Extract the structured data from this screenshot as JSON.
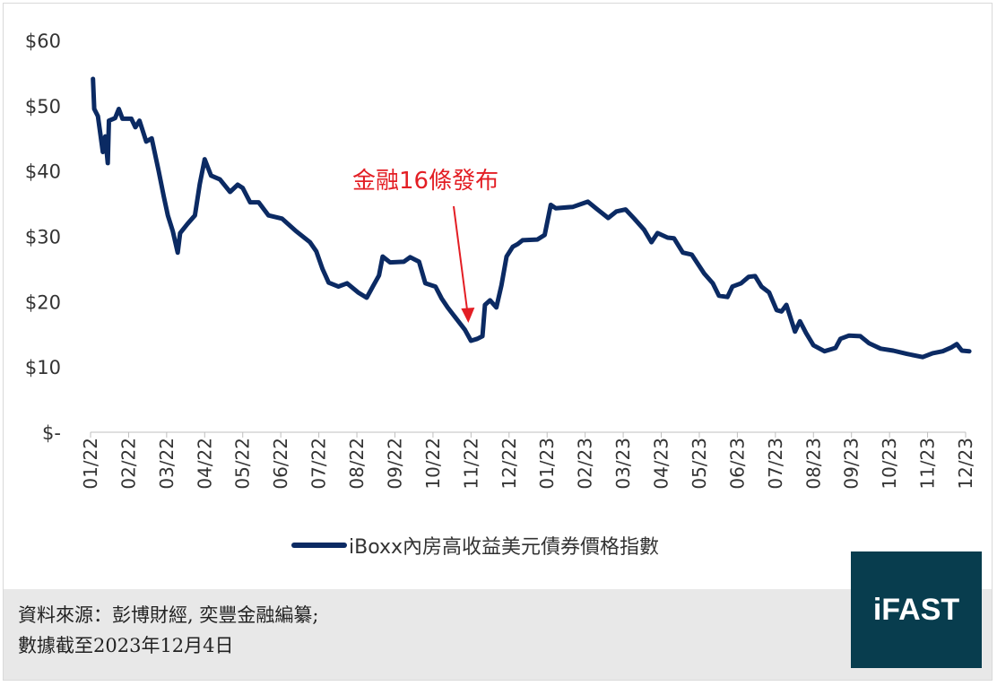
{
  "chart_data": {
    "type": "line",
    "title": "",
    "xlabel": "",
    "ylabel": "",
    "ylim": [
      0,
      60
    ],
    "y_ticks": [
      "$-",
      "$10",
      "$20",
      "$30",
      "$40",
      "$50",
      "$60"
    ],
    "y_tick_values": [
      0,
      10,
      20,
      30,
      40,
      50,
      60
    ],
    "x_ticks": [
      "01/22",
      "02/22",
      "03/22",
      "04/22",
      "05/22",
      "06/22",
      "07/22",
      "08/22",
      "09/22",
      "10/22",
      "11/22",
      "12/22",
      "01/23",
      "02/23",
      "03/23",
      "04/23",
      "05/23",
      "06/23",
      "07/23",
      "08/23",
      "09/23",
      "10/23",
      "11/23",
      "12/23"
    ],
    "x_tick_dates": [
      "2022-01-01",
      "2022-02-01",
      "2022-03-01",
      "2022-04-01",
      "2022-05-01",
      "2022-06-01",
      "2022-07-01",
      "2022-08-01",
      "2022-09-01",
      "2022-10-01",
      "2022-11-01",
      "2022-12-01",
      "2023-01-01",
      "2023-02-01",
      "2023-03-01",
      "2023-04-01",
      "2023-05-01",
      "2023-06-01",
      "2023-07-01",
      "2023-08-01",
      "2023-09-01",
      "2023-10-01",
      "2023-11-01",
      "2023-12-01"
    ],
    "grid": false,
    "legend_position": "bottom",
    "colors": {
      "series": "#0b2a63",
      "annotation": "#e31e24"
    },
    "series": [
      {
        "name": "iBoxx內房高收益美元債券價格指數",
        "x": [
          "2022-01-03",
          "2022-01-04",
          "2022-01-07",
          "2022-01-11",
          "2022-01-13",
          "2022-01-15",
          "2022-01-16",
          "2022-01-21",
          "2022-01-24",
          "2022-01-27",
          "2022-02-03",
          "2022-02-06",
          "2022-02-09",
          "2022-02-14",
          "2022-02-18",
          "2022-02-23",
          "2022-02-27",
          "2022-03-02",
          "2022-03-06",
          "2022-03-10",
          "2022-03-12",
          "2022-03-18",
          "2022-03-24",
          "2022-03-28",
          "2022-04-01",
          "2022-04-06",
          "2022-04-13",
          "2022-04-21",
          "2022-04-27",
          "2022-05-01",
          "2022-05-07",
          "2022-05-14",
          "2022-05-22",
          "2022-06-02",
          "2022-06-13",
          "2022-06-24",
          "2022-06-29",
          "2022-07-04",
          "2022-07-09",
          "2022-07-17",
          "2022-07-24",
          "2022-08-02",
          "2022-08-09",
          "2022-08-14",
          "2022-08-19",
          "2022-08-22",
          "2022-08-28",
          "2022-09-08",
          "2022-09-13",
          "2022-09-20",
          "2022-09-25",
          "2022-10-03",
          "2022-10-08",
          "2022-10-13",
          "2022-10-20",
          "2022-10-27",
          "2022-11-01",
          "2022-11-06",
          "2022-11-10",
          "2022-11-12",
          "2022-11-16",
          "2022-11-21",
          "2022-11-25",
          "2022-11-29",
          "2022-12-04",
          "2022-12-08",
          "2022-12-12",
          "2022-12-24",
          "2022-12-30",
          "2023-01-04",
          "2023-01-08",
          "2023-01-22",
          "2023-02-03",
          "2023-02-10",
          "2023-02-18",
          "2023-02-24",
          "2023-03-03",
          "2023-03-10",
          "2023-03-18",
          "2023-03-24",
          "2023-03-29",
          "2023-04-06",
          "2023-04-11",
          "2023-04-18",
          "2023-04-25",
          "2023-05-05",
          "2023-05-12",
          "2023-05-17",
          "2023-05-24",
          "2023-05-28",
          "2023-06-04",
          "2023-06-10",
          "2023-06-15",
          "2023-06-20",
          "2023-06-26",
          "2023-07-02",
          "2023-07-06",
          "2023-07-10",
          "2023-07-17",
          "2023-07-21",
          "2023-07-26",
          "2023-08-01",
          "2023-08-10",
          "2023-08-19",
          "2023-08-23",
          "2023-08-30",
          "2023-09-08",
          "2023-09-15",
          "2023-09-24",
          "2023-10-04",
          "2023-10-15",
          "2023-10-28",
          "2023-11-05",
          "2023-11-13",
          "2023-11-20",
          "2023-11-24",
          "2023-11-28",
          "2023-12-04"
        ],
        "values": [
          54.1,
          49.5,
          48.4,
          42.9,
          45.3,
          41.2,
          47.7,
          48.1,
          49.5,
          48.0,
          48.0,
          46.7,
          47.7,
          44.5,
          45.0,
          40.1,
          36.0,
          33.2,
          30.8,
          27.5,
          30.5,
          31.9,
          33.2,
          38.0,
          41.8,
          39.3,
          38.7,
          36.8,
          37.9,
          37.4,
          35.2,
          35.2,
          33.2,
          32.7,
          30.8,
          29.1,
          27.7,
          25.0,
          22.9,
          22.3,
          22.8,
          21.4,
          20.6,
          22.3,
          24.0,
          26.9,
          26.0,
          26.1,
          26.8,
          26.1,
          22.8,
          22.3,
          20.5,
          19.1,
          17.4,
          15.7,
          14.0,
          14.3,
          14.7,
          19.5,
          20.2,
          19.1,
          22.5,
          26.9,
          28.4,
          28.8,
          29.4,
          29.5,
          30.2,
          34.8,
          34.3,
          34.5,
          35.3,
          34.1,
          32.8,
          33.8,
          34.1,
          32.7,
          31.0,
          29.1,
          30.5,
          29.8,
          29.7,
          27.5,
          27.2,
          24.3,
          22.8,
          20.9,
          20.7,
          22.3,
          22.8,
          23.8,
          23.9,
          22.3,
          21.4,
          18.7,
          18.5,
          19.5,
          15.4,
          17.0,
          15.2,
          13.3,
          12.4,
          12.9,
          14.3,
          14.8,
          14.7,
          13.6,
          12.8,
          12.5,
          12.0,
          11.5,
          12.1,
          12.4,
          13.0,
          13.5,
          12.5,
          12.4
        ]
      }
    ],
    "annotations": [
      {
        "text": "金融16條發布",
        "date": "2022-11-01",
        "value": 14.0
      }
    ]
  },
  "footer": {
    "source_line": "資料來源：彭博財經, 奕豐金融編纂;",
    "date_line": "數據截至2023年12月4日"
  },
  "logo": {
    "text": "iFAST",
    "background": "#083d4e"
  }
}
